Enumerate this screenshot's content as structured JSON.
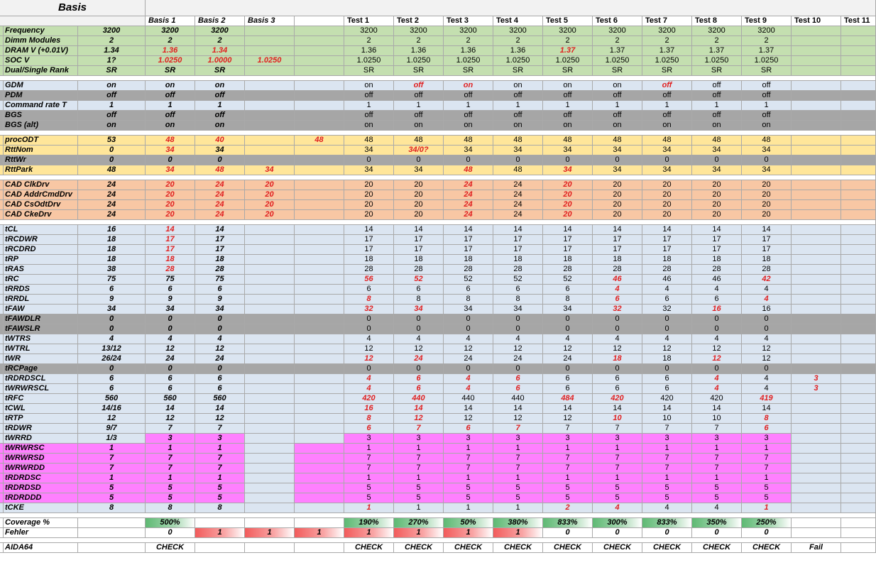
{
  "title": "Basis",
  "colors": {
    "green": "#c4dfb0",
    "blue": "#dbe5f1",
    "gray": "#a6a6a6",
    "yellow": "#ffe69a",
    "orange": "#f8c7a4",
    "pink": "#ff80ff",
    "white": "#ffffff",
    "header": "#f2f2f2"
  },
  "headers": [
    "",
    "",
    "Basis 1",
    "Basis 2",
    "Basis 3",
    "",
    "Test 1",
    "Test 2",
    "Test 3",
    "Test 4",
    "Test 5",
    "Test 6",
    "Test 7",
    "Test 8",
    "Test 9",
    "Test 10",
    "Test 11"
  ],
  "rows": [
    {
      "label": "Frequency",
      "color": "green",
      "cells": [
        "3200",
        "3200",
        "3200",
        "",
        "",
        "3200",
        "3200",
        "3200",
        "3200",
        "3200",
        "3200",
        "3200",
        "3200",
        "3200",
        "",
        ""
      ]
    },
    {
      "label": "Dimm Modules",
      "color": "green",
      "cells": [
        "2",
        "2",
        "2",
        "",
        "",
        "2",
        "2",
        "2",
        "2",
        "2",
        "2",
        "2",
        "2",
        "2",
        "",
        ""
      ]
    },
    {
      "label": "DRAM V (+0.01V)",
      "color": "green",
      "cells": [
        "1.34",
        "*1.36",
        "*1.34",
        "",
        "",
        "1.36",
        "1.36",
        "1.36",
        "1.36",
        "*1.37",
        "1.37",
        "1.37",
        "1.37",
        "1.37",
        "",
        ""
      ]
    },
    {
      "label": "SOC V",
      "color": "green",
      "cells": [
        "1?",
        "*1.0250",
        "*1.0000",
        "*1.0250",
        "",
        "1.0250",
        "1.0250",
        "1.0250",
        "1.0250",
        "1.0250",
        "1.0250",
        "1.0250",
        "1.0250",
        "1.0250",
        "",
        ""
      ]
    },
    {
      "label": "Dual/Single Rank",
      "color": "green",
      "cells": [
        "SR",
        "SR",
        "SR",
        "",
        "",
        "SR",
        "SR",
        "SR",
        "SR",
        "SR",
        "SR",
        "SR",
        "SR",
        "SR",
        "",
        ""
      ]
    },
    {
      "spacer": true
    },
    {
      "label": "GDM",
      "color": "blue",
      "cells": [
        "on",
        "on",
        "on",
        "",
        "",
        "on",
        "*off",
        "*on",
        "on",
        "on",
        "on",
        "*off",
        "off",
        "off",
        "",
        ""
      ]
    },
    {
      "label": "PDM",
      "color": "gray",
      "cells": [
        "off",
        "off",
        "off",
        "",
        "",
        "off",
        "off",
        "off",
        "off",
        "off",
        "off",
        "off",
        "off",
        "off",
        "",
        ""
      ]
    },
    {
      "label": "Command rate T",
      "color": "blue",
      "cells": [
        "1",
        "1",
        "1",
        "",
        "",
        "1",
        "1",
        "1",
        "1",
        "1",
        "1",
        "1",
        "1",
        "1",
        "",
        ""
      ]
    },
    {
      "label": "BGS",
      "color": "gray",
      "cells": [
        "off",
        "off",
        "off",
        "",
        "",
        "off",
        "off",
        "off",
        "off",
        "off",
        "off",
        "off",
        "off",
        "off",
        "",
        ""
      ]
    },
    {
      "label": "BGS (alt)",
      "color": "gray",
      "cells": [
        "on",
        "on",
        "on",
        "",
        "",
        "on",
        "on",
        "on",
        "on",
        "on",
        "on",
        "on",
        "on",
        "on",
        "",
        ""
      ]
    },
    {
      "spacer": true
    },
    {
      "label": "procODT",
      "color": "yellow",
      "cells": [
        "53",
        "*48",
        "*40",
        "",
        "*48",
        "48",
        "48",
        "48",
        "48",
        "48",
        "48",
        "48",
        "48",
        "48",
        "",
        ""
      ]
    },
    {
      "label": "RttNom",
      "color": "yellow",
      "cells": [
        "0",
        "*34",
        "34",
        "",
        "",
        "34",
        "*34/0?",
        "34",
        "34",
        "34",
        "34",
        "34",
        "34",
        "34",
        "",
        ""
      ]
    },
    {
      "label": "RttWr",
      "color": "gray",
      "cells": [
        "0",
        "0",
        "0",
        "",
        "",
        "0",
        "0",
        "0",
        "0",
        "0",
        "0",
        "0",
        "0",
        "0",
        "",
        ""
      ]
    },
    {
      "label": "RttPark",
      "color": "yellow",
      "cells": [
        "48",
        "*34",
        "*48",
        "*34",
        "",
        "34",
        "34",
        "*48",
        "48",
        "*34",
        "34",
        "34",
        "34",
        "34",
        "",
        ""
      ]
    },
    {
      "spacer": true
    },
    {
      "label": "CAD ClkDrv",
      "color": "orange",
      "cells": [
        "24",
        "*20",
        "*24",
        "*20",
        "",
        "20",
        "20",
        "*24",
        "24",
        "*20",
        "20",
        "20",
        "20",
        "20",
        "",
        ""
      ]
    },
    {
      "label": "CAD AddrCmdDrv",
      "color": "orange",
      "cells": [
        "24",
        "*20",
        "*24",
        "*20",
        "",
        "20",
        "20",
        "*24",
        "24",
        "*20",
        "20",
        "20",
        "20",
        "20",
        "",
        ""
      ]
    },
    {
      "label": "CAD CsOdtDrv",
      "color": "orange",
      "cells": [
        "24",
        "*20",
        "*24",
        "*20",
        "",
        "20",
        "20",
        "*24",
        "24",
        "*20",
        "20",
        "20",
        "20",
        "20",
        "",
        ""
      ]
    },
    {
      "label": "CAD CkeDrv",
      "color": "orange",
      "cells": [
        "24",
        "*20",
        "*24",
        "*20",
        "",
        "20",
        "20",
        "*24",
        "24",
        "*20",
        "20",
        "20",
        "20",
        "20",
        "",
        ""
      ]
    },
    {
      "spacer": true
    },
    {
      "label": "tCL",
      "color": "blue",
      "cells": [
        "16",
        "*14",
        "14",
        "",
        "",
        "14",
        "14",
        "14",
        "14",
        "14",
        "14",
        "14",
        "14",
        "14",
        "",
        ""
      ]
    },
    {
      "label": "tRCDWR",
      "color": "blue",
      "cells": [
        "18",
        "*17",
        "17",
        "",
        "",
        "17",
        "17",
        "17",
        "17",
        "17",
        "17",
        "17",
        "17",
        "17",
        "",
        ""
      ]
    },
    {
      "label": "tRCDRD",
      "color": "blue",
      "cells": [
        "18",
        "*17",
        "17",
        "",
        "",
        "17",
        "17",
        "17",
        "17",
        "17",
        "17",
        "17",
        "17",
        "17",
        "",
        ""
      ]
    },
    {
      "label": "tRP",
      "color": "blue",
      "cells": [
        "18",
        "*18",
        "18",
        "",
        "",
        "18",
        "18",
        "18",
        "18",
        "18",
        "18",
        "18",
        "18",
        "18",
        "",
        ""
      ]
    },
    {
      "label": "tRAS",
      "color": "blue",
      "cells": [
        "38",
        "*28",
        "28",
        "",
        "",
        "28",
        "28",
        "28",
        "28",
        "28",
        "28",
        "28",
        "28",
        "28",
        "",
        ""
      ]
    },
    {
      "label": "tRC",
      "color": "blue",
      "cells": [
        "75",
        "75",
        "75",
        "",
        "",
        "*56",
        "*52",
        "52",
        "52",
        "52",
        "*46",
        "46",
        "46",
        "*42",
        "",
        ""
      ]
    },
    {
      "label": "tRRDS",
      "color": "blue",
      "cells": [
        "6",
        "6",
        "6",
        "",
        "",
        "6",
        "6",
        "6",
        "6",
        "6",
        "*4",
        "4",
        "4",
        "4",
        "",
        ""
      ]
    },
    {
      "label": "tRRDL",
      "color": "blue",
      "cells": [
        "9",
        "9",
        "9",
        "",
        "",
        "*8",
        "8",
        "8",
        "8",
        "8",
        "*6",
        "6",
        "6",
        "*4",
        "",
        ""
      ]
    },
    {
      "label": "tFAW",
      "color": "blue",
      "cells": [
        "34",
        "34",
        "34",
        "",
        "",
        "*32",
        "*34",
        "34",
        "34",
        "34",
        "*32",
        "32",
        "*16",
        "16",
        "",
        ""
      ]
    },
    {
      "label": "tFAWDLR",
      "color": "gray",
      "cells": [
        "0",
        "0",
        "0",
        "",
        "",
        "0",
        "0",
        "0",
        "0",
        "0",
        "0",
        "0",
        "0",
        "0",
        "",
        ""
      ]
    },
    {
      "label": "tFAWSLR",
      "color": "gray",
      "cells": [
        "0",
        "0",
        "0",
        "",
        "",
        "0",
        "0",
        "0",
        "0",
        "0",
        "0",
        "0",
        "0",
        "0",
        "",
        ""
      ]
    },
    {
      "label": "tWTRS",
      "color": "blue",
      "cells": [
        "4",
        "4",
        "4",
        "",
        "",
        "4",
        "4",
        "4",
        "4",
        "4",
        "4",
        "4",
        "4",
        "4",
        "",
        ""
      ]
    },
    {
      "label": "tWTRL",
      "color": "blue",
      "cells": [
        "13/12",
        "12",
        "12",
        "",
        "",
        "12",
        "12",
        "12",
        "12",
        "12",
        "12",
        "12",
        "12",
        "12",
        "",
        ""
      ]
    },
    {
      "label": "tWR",
      "color": "blue",
      "cells": [
        "26/24",
        "24",
        "24",
        "",
        "",
        "*12",
        "*24",
        "24",
        "24",
        "24",
        "*18",
        "18",
        "*12",
        "12",
        "",
        ""
      ]
    },
    {
      "label": "tRCPage",
      "color": "gray",
      "cells": [
        "0",
        "0",
        "0",
        "",
        "",
        "0",
        "0",
        "0",
        "0",
        "0",
        "0",
        "0",
        "0",
        "0",
        "",
        ""
      ]
    },
    {
      "label": "tRDRDSCL",
      "color": "blue",
      "cells": [
        "6",
        "6",
        "6",
        "",
        "",
        "*4",
        "*6",
        "*4",
        "*6",
        "6",
        "6",
        "6",
        "*4",
        "4",
        "*3",
        ""
      ]
    },
    {
      "label": "tWRWRSCL",
      "color": "blue",
      "cells": [
        "6",
        "6",
        "6",
        "",
        "",
        "*4",
        "*6",
        "*4",
        "*6",
        "6",
        "6",
        "6",
        "*4",
        "4",
        "*3",
        ""
      ]
    },
    {
      "label": "tRFC",
      "color": "blue",
      "cells": [
        "560",
        "560",
        "560",
        "",
        "",
        "*420",
        "*440",
        "440",
        "440",
        "*484",
        "*420",
        "420",
        "420",
        "*419",
        "",
        ""
      ]
    },
    {
      "label": "tCWL",
      "color": "blue",
      "cells": [
        "14/16",
        "14",
        "14",
        "",
        "",
        "*16",
        "*14",
        "14",
        "14",
        "14",
        "14",
        "14",
        "14",
        "14",
        "",
        ""
      ]
    },
    {
      "label": "tRTP",
      "color": "blue",
      "cells": [
        "12",
        "12",
        "12",
        "",
        "",
        "*8",
        "*12",
        "12",
        "12",
        "12",
        "*10",
        "10",
        "10",
        "*8",
        "",
        ""
      ]
    },
    {
      "label": "tRDWR",
      "color": "blue",
      "cells": [
        "9/7",
        "7",
        "7",
        "",
        "",
        "*6",
        "*7",
        "*6",
        "*7",
        "7",
        "7",
        "7",
        "7",
        "*6",
        "",
        ""
      ]
    },
    {
      "label": "tWRRD",
      "color": "blue",
      "pink": [
        1,
        2,
        5,
        6,
        7,
        8,
        9,
        10,
        11,
        12,
        13
      ],
      "cells": [
        "1/3",
        "3",
        "3",
        "",
        "",
        "3",
        "3",
        "3",
        "3",
        "3",
        "3",
        "3",
        "3",
        "3",
        "",
        ""
      ]
    },
    {
      "label": "tWRWRSC",
      "color": "pink",
      "cells": [
        "1",
        "1",
        "1",
        "",
        "",
        "1",
        "1",
        "1",
        "1",
        "1",
        "1",
        "1",
        "1",
        "1",
        "",
        ""
      ]
    },
    {
      "label": "tWRWRSD",
      "color": "pink",
      "cells": [
        "7",
        "7",
        "7",
        "",
        "",
        "7",
        "7",
        "7",
        "7",
        "7",
        "7",
        "7",
        "7",
        "7",
        "",
        ""
      ]
    },
    {
      "label": "tWRWRDD",
      "color": "pink",
      "cells": [
        "7",
        "7",
        "7",
        "",
        "",
        "7",
        "7",
        "7",
        "7",
        "7",
        "7",
        "7",
        "7",
        "7",
        "",
        ""
      ]
    },
    {
      "label": "tRDRDSC",
      "color": "pink",
      "cells": [
        "1",
        "1",
        "1",
        "",
        "",
        "1",
        "1",
        "1",
        "1",
        "1",
        "1",
        "1",
        "1",
        "1",
        "",
        ""
      ]
    },
    {
      "label": "tRDRDSD",
      "color": "pink",
      "cells": [
        "5",
        "5",
        "5",
        "",
        "",
        "5",
        "5",
        "5",
        "5",
        "5",
        "5",
        "5",
        "5",
        "5",
        "",
        ""
      ]
    },
    {
      "label": "tRDRDDD",
      "color": "pink",
      "cells": [
        "5",
        "5",
        "5",
        "",
        "",
        "5",
        "5",
        "5",
        "5",
        "5",
        "5",
        "5",
        "5",
        "5",
        "",
        ""
      ]
    },
    {
      "label": "tCKE",
      "color": "blue",
      "cells": [
        "8",
        "8",
        "8",
        "",
        "",
        "*1",
        "1",
        "1",
        "1",
        "*2",
        "*4",
        "4",
        "4",
        "*1",
        "",
        ""
      ]
    },
    {
      "spacer": true
    },
    {
      "label": "Coverage %",
      "color": "white",
      "kind": "coverage",
      "cells": [
        "",
        "500%",
        "",
        "",
        "",
        "190%",
        "270%",
        "50%",
        "380%",
        "833%",
        "300%",
        "833%",
        "350%",
        "250%",
        "",
        ""
      ]
    },
    {
      "label": "Fehler",
      "color": "white",
      "kind": "fehler",
      "cells": [
        "",
        "0",
        "1",
        "1",
        "1",
        "1",
        "1",
        "1",
        "1",
        "0",
        "0",
        "0",
        "0",
        "0",
        "",
        ""
      ]
    },
    {
      "spacer": true
    },
    {
      "label": "AIDA64",
      "color": "white",
      "kind": "aida",
      "cells": [
        "",
        "CHECK",
        "",
        "",
        "",
        "CHECK",
        "CHECK",
        "CHECK",
        "CHECK",
        "CHECK",
        "CHECK",
        "CHECK",
        "CHECK",
        "CHECK",
        "Fail",
        ""
      ]
    }
  ]
}
